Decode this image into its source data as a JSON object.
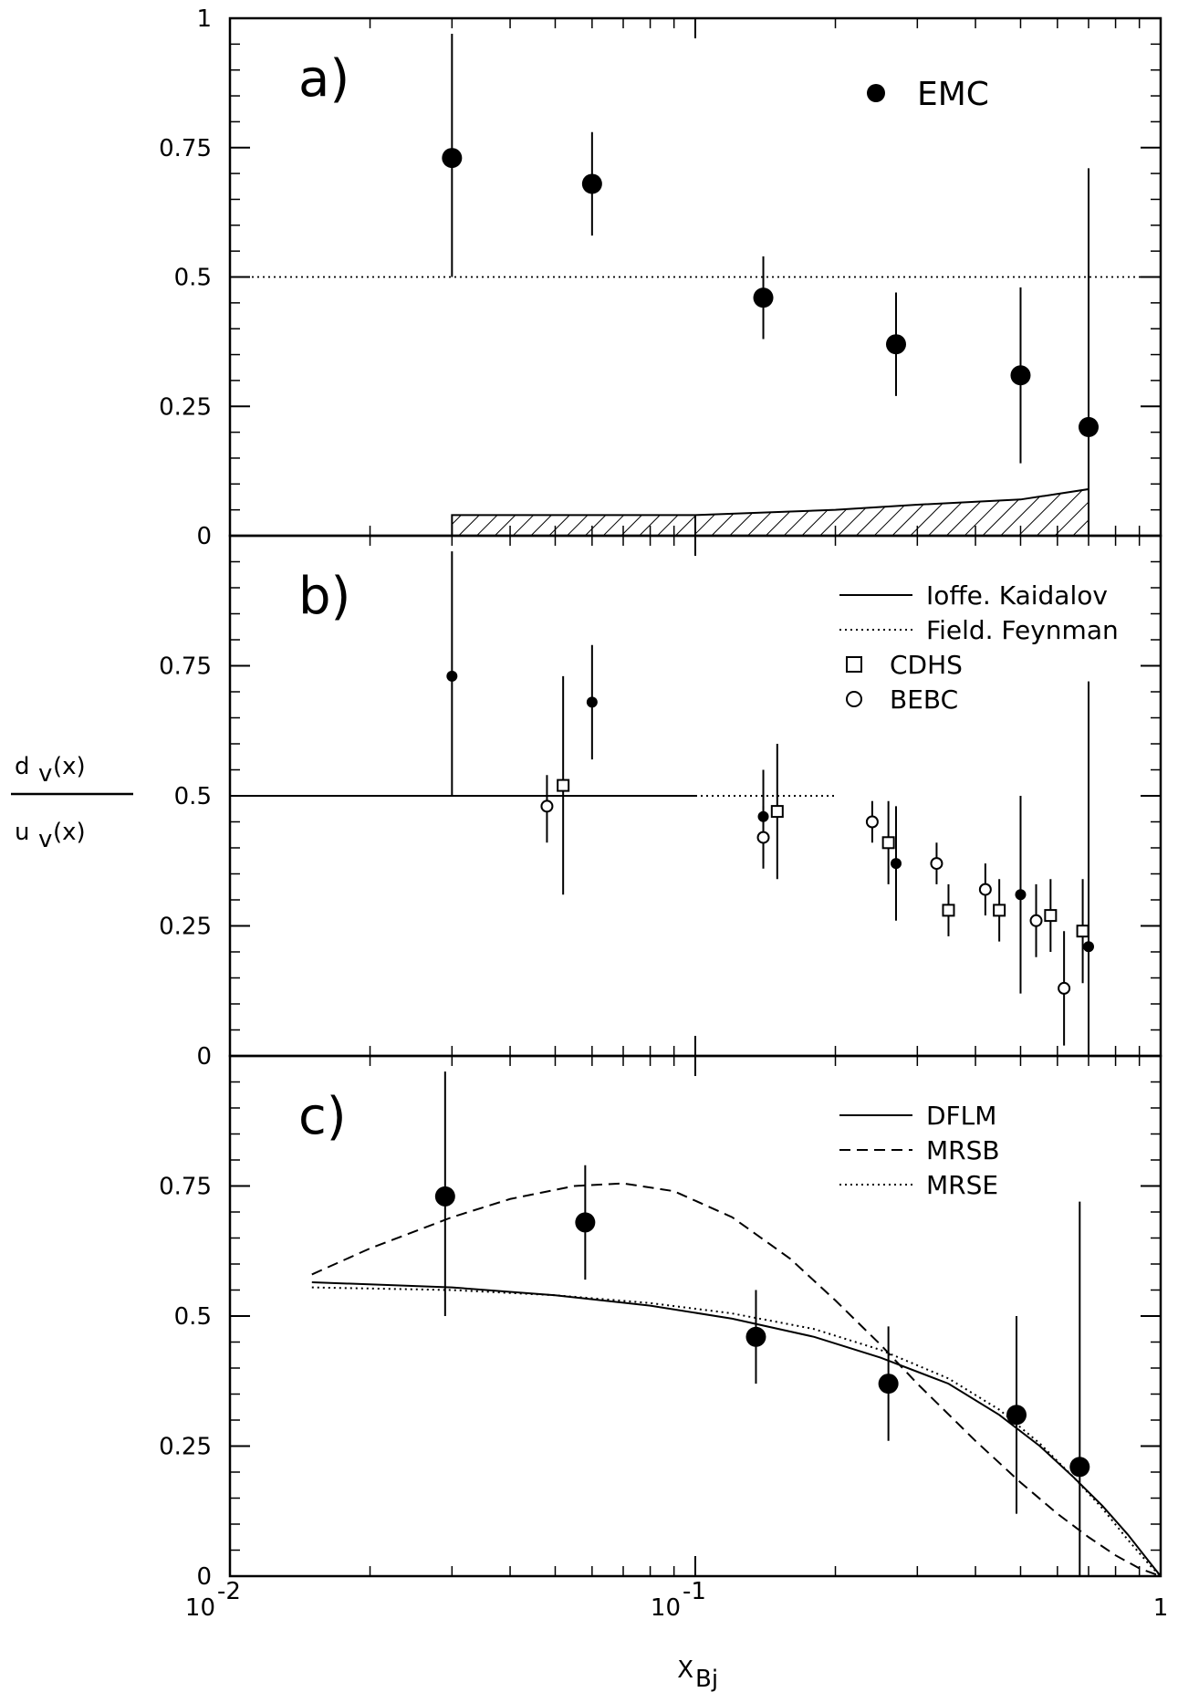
{
  "chart_data": [
    {
      "panel": "a)",
      "type": "scatter",
      "xscale": "log",
      "xlim": [
        0.01,
        1
      ],
      "ylim": [
        0,
        1
      ],
      "yticks": [
        "0",
        "0.25",
        "0.5",
        "0.75",
        "1"
      ],
      "reference_line": {
        "y": 0.5,
        "style": "dotted",
        "x": [
          0.01,
          1
        ]
      },
      "series": [
        {
          "name": "EMC",
          "marker": "filled-circle",
          "points": [
            {
              "x": 0.03,
              "y": 0.73,
              "ylo": 0.5,
              "yhi": 0.97
            },
            {
              "x": 0.06,
              "y": 0.68,
              "ylo": 0.58,
              "yhi": 0.78
            },
            {
              "x": 0.14,
              "y": 0.46,
              "ylo": 0.38,
              "yhi": 0.54
            },
            {
              "x": 0.27,
              "y": 0.37,
              "ylo": 0.27,
              "yhi": 0.47
            },
            {
              "x": 0.5,
              "y": 0.31,
              "ylo": 0.14,
              "yhi": 0.48
            },
            {
              "x": 0.7,
              "y": 0.21,
              "ylo": 0.0,
              "yhi": 0.71
            }
          ]
        }
      ],
      "systematic_band": {
        "x": [
          0.03,
          0.1,
          0.2,
          0.3,
          0.5,
          0.7
        ],
        "y": [
          0.04,
          0.04,
          0.05,
          0.06,
          0.07,
          0.09
        ]
      }
    },
    {
      "panel": "b)",
      "type": "scatter",
      "xscale": "log",
      "xlim": [
        0.01,
        1
      ],
      "ylim": [
        0,
        1
      ],
      "yticks": [
        "0",
        "0.25",
        "0.5",
        "0.75"
      ],
      "legend": {
        "position": "top-right",
        "entries": [
          {
            "label": "Ioffe. Kaidalov",
            "symbol": "solid-line"
          },
          {
            "label": "Field. Feynman",
            "symbol": "dotted-line"
          },
          {
            "label": "CDHS",
            "symbol": "open-square"
          },
          {
            "label": "BEBC",
            "symbol": "open-circle"
          }
        ]
      },
      "lines": [
        {
          "label": "Ioffe. Kaidalov",
          "style": "solid",
          "x": [
            0.01,
            0.1
          ],
          "y": [
            0.5,
            0.5
          ]
        },
        {
          "label": "Field. Feynman",
          "style": "dotted",
          "x": [
            0.1,
            0.2
          ],
          "y": [
            0.5,
            0.5
          ]
        }
      ],
      "series": [
        {
          "name": "EMC",
          "marker": "small-filled-circle",
          "points": [
            {
              "x": 0.03,
              "y": 0.73,
              "ylo": 0.5,
              "yhi": 0.97
            },
            {
              "x": 0.06,
              "y": 0.68,
              "ylo": 0.57,
              "yhi": 0.79
            },
            {
              "x": 0.14,
              "y": 0.46,
              "ylo": 0.37,
              "yhi": 0.55
            },
            {
              "x": 0.27,
              "y": 0.37,
              "ylo": 0.26,
              "yhi": 0.48
            },
            {
              "x": 0.5,
              "y": 0.31,
              "ylo": 0.12,
              "yhi": 0.5
            },
            {
              "x": 0.7,
              "y": 0.21,
              "ylo": 0.0,
              "yhi": 0.72
            }
          ]
        },
        {
          "name": "CDHS",
          "marker": "open-square",
          "points": [
            {
              "x": 0.052,
              "y": 0.52,
              "ylo": 0.31,
              "yhi": 0.73
            },
            {
              "x": 0.15,
              "y": 0.47,
              "ylo": 0.34,
              "yhi": 0.6
            },
            {
              "x": 0.26,
              "y": 0.41,
              "ylo": 0.33,
              "yhi": 0.49
            },
            {
              "x": 0.35,
              "y": 0.28,
              "ylo": 0.23,
              "yhi": 0.33
            },
            {
              "x": 0.45,
              "y": 0.28,
              "ylo": 0.22,
              "yhi": 0.34
            },
            {
              "x": 0.58,
              "y": 0.27,
              "ylo": 0.2,
              "yhi": 0.34
            },
            {
              "x": 0.68,
              "y": 0.24,
              "ylo": 0.14,
              "yhi": 0.34
            }
          ]
        },
        {
          "name": "BEBC",
          "marker": "open-circle",
          "points": [
            {
              "x": 0.048,
              "y": 0.48,
              "ylo": 0.41,
              "yhi": 0.54
            },
            {
              "x": 0.14,
              "y": 0.42,
              "ylo": 0.36,
              "yhi": 0.48
            },
            {
              "x": 0.24,
              "y": 0.45,
              "ylo": 0.41,
              "yhi": 0.49
            },
            {
              "x": 0.33,
              "y": 0.37,
              "ylo": 0.33,
              "yhi": 0.41
            },
            {
              "x": 0.42,
              "y": 0.32,
              "ylo": 0.27,
              "yhi": 0.37
            },
            {
              "x": 0.54,
              "y": 0.26,
              "ylo": 0.19,
              "yhi": 0.33
            },
            {
              "x": 0.62,
              "y": 0.13,
              "ylo": 0.02,
              "yhi": 0.24
            }
          ]
        }
      ]
    },
    {
      "panel": "c)",
      "type": "scatter",
      "xscale": "log",
      "xlim": [
        0.01,
        1
      ],
      "ylim": [
        0,
        1
      ],
      "yticks": [
        "0",
        "0.25",
        "0.5",
        "0.75"
      ],
      "xticks": [
        {
          "base": "10",
          "exp": "-2",
          "value": 0.01
        },
        {
          "base": "10",
          "exp": "-1",
          "value": 0.1
        },
        {
          "base": "1",
          "exp": "",
          "value": 1
        }
      ],
      "xlabel": {
        "main": "X",
        "sub": "Bj"
      },
      "ylabel": {
        "numerator": "d",
        "numerator_sub": "v",
        "numerator_arg": "(x)",
        "denominator": "u",
        "denominator_sub": "v",
        "denominator_arg": "(x)"
      },
      "legend": {
        "position": "top-right",
        "entries": [
          {
            "label": "DFLM",
            "symbol": "solid-line"
          },
          {
            "label": "MRSB",
            "symbol": "dashed-line"
          },
          {
            "label": "MRSE",
            "symbol": "dotted-line"
          }
        ]
      },
      "curves": [
        {
          "name": "DFLM",
          "style": "solid",
          "x": [
            0.015,
            0.03,
            0.05,
            0.08,
            0.12,
            0.18,
            0.25,
            0.35,
            0.45,
            0.55,
            0.65,
            0.75,
            0.85,
            0.95,
            1.0
          ],
          "y": [
            0.565,
            0.555,
            0.54,
            0.52,
            0.495,
            0.46,
            0.42,
            0.37,
            0.31,
            0.25,
            0.19,
            0.135,
            0.08,
            0.025,
            0.0
          ]
        },
        {
          "name": "MRSB",
          "style": "dashed",
          "x": [
            0.015,
            0.02,
            0.03,
            0.04,
            0.055,
            0.07,
            0.09,
            0.12,
            0.16,
            0.2,
            0.25,
            0.3,
            0.4,
            0.5,
            0.6,
            0.7,
            0.8,
            0.9,
            1.0
          ],
          "y": [
            0.58,
            0.63,
            0.69,
            0.725,
            0.75,
            0.755,
            0.74,
            0.69,
            0.61,
            0.53,
            0.445,
            0.37,
            0.26,
            0.18,
            0.12,
            0.075,
            0.04,
            0.015,
            0.0
          ]
        },
        {
          "name": "MRSE",
          "style": "dotted",
          "x": [
            0.015,
            0.03,
            0.05,
            0.08,
            0.12,
            0.18,
            0.25,
            0.35,
            0.45,
            0.55,
            0.65,
            0.75,
            0.85,
            0.95,
            1.0
          ],
          "y": [
            0.555,
            0.55,
            0.54,
            0.525,
            0.505,
            0.475,
            0.435,
            0.38,
            0.32,
            0.255,
            0.19,
            0.13,
            0.07,
            0.02,
            0.0
          ]
        }
      ],
      "series": [
        {
          "name": "EMC",
          "marker": "filled-circle",
          "points": [
            {
              "x": 0.029,
              "y": 0.73,
              "ylo": 0.5,
              "yhi": 0.97
            },
            {
              "x": 0.058,
              "y": 0.68,
              "ylo": 0.57,
              "yhi": 0.79
            },
            {
              "x": 0.135,
              "y": 0.46,
              "ylo": 0.37,
              "yhi": 0.55
            },
            {
              "x": 0.26,
              "y": 0.37,
              "ylo": 0.26,
              "yhi": 0.48
            },
            {
              "x": 0.49,
              "y": 0.31,
              "ylo": 0.12,
              "yhi": 0.5
            },
            {
              "x": 0.67,
              "y": 0.21,
              "ylo": 0.0,
              "yhi": 0.72
            }
          ]
        }
      ]
    }
  ],
  "legend_a": {
    "label": "EMC"
  }
}
